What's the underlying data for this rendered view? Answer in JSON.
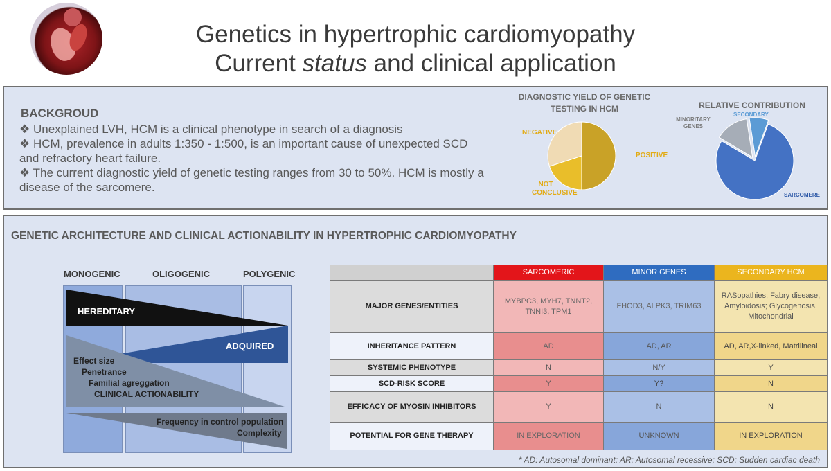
{
  "header": {
    "title_line1": "Genetics in hypertrophic cardiomyopathy",
    "title_line2_pre": "Current ",
    "title_line2_italic": "status",
    "title_line2_post": " and clinical application"
  },
  "background": {
    "heading": "BACKGROUD",
    "bullets": [
      "❖ Unexplained LVH, HCM is a clinical phenotype in search of a diagnosis",
      "❖ HCM, prevalence in adults 1:350 - 1:500, is an important cause of unexpected SCD and refractory heart failure.",
      "❖ The current diagnostic yield of genetic testing ranges from 30 to 50%. HCM is mostly a disease of the sarcomere."
    ]
  },
  "chart_data": [
    {
      "type": "pie",
      "title": "DIAGNOSTIC YIELD OF GENETIC TESTING IN HCM",
      "labels": [
        "POSITIVE",
        "NOT CONCLUSIVE",
        "NEGATIVE"
      ],
      "values": [
        50,
        20,
        30
      ],
      "colors": [
        "#c9a227",
        "#e9be2a",
        "#f0dbb4"
      ]
    },
    {
      "type": "pie",
      "title": "RELATIVE CONTRIBUTION",
      "labels": [
        "SARCOMERE",
        "MINORITARY GENES",
        "SECONDARY"
      ],
      "values": [
        78,
        14,
        8
      ],
      "colors": [
        "#4472c4",
        "#a6adb7",
        "#5b9bd5"
      ]
    }
  ],
  "pie_labels": {
    "positive": "POSITIVE",
    "not_conclusive_1": "NOT",
    "not_conclusive_2": "CONCLUSIVE",
    "negative": "NEGATIVE",
    "minoritary_1": "MINORITARY",
    "minoritary_2": "GENES",
    "secondary": "SECONDARY",
    "sarcomere": "SARCOMERE"
  },
  "architecture": {
    "title": "GENETIC ARCHITECTURE AND CLINICAL ACTIONABILITY IN HYPERTROPHIC CARDIOMYOPATHY",
    "columns": [
      "MONOGENIC",
      "OLIGOGENIC",
      "POLYGENIC"
    ],
    "hereditary": "HEREDITARY",
    "adquired": "ADQUIRED",
    "effect_lines": [
      "Effect size",
      "Penetrance",
      "Familial agreggation",
      "CLINICAL ACTIONABILITY"
    ],
    "frequency_lines": [
      "Frequency in control population",
      "Complexity"
    ]
  },
  "table": {
    "headers": [
      "SARCOMERIC",
      "MINOR GENES",
      "SECONDARY HCM"
    ],
    "header_colors": [
      "#e3151a",
      "#2f6cc0",
      "#ebb51e"
    ],
    "rows": [
      {
        "label": "MAJOR GENES/ENTITIES",
        "cells": [
          "MYBPC3, MYH7, TNNT2, TNNI3, TPM1",
          "FHOD3, ALPK3, TRIM63",
          "RASopathies; Fabry disease, Amyloidosis; Glycogenosis, Mitochondrial"
        ]
      },
      {
        "label": "INHERITANCE PATTERN",
        "cells": [
          "AD",
          "AD, AR",
          "AD, AR,X-linked, Matrilineal"
        ]
      },
      {
        "label": "SYSTEMIC PHENOTYPE",
        "cells": [
          "N",
          "N/Y",
          "Y"
        ]
      },
      {
        "label": "SCD-RISK SCORE",
        "cells": [
          "Y",
          "Y?",
          "N"
        ]
      },
      {
        "label": "EFFICACY OF MYOSIN INHIBITORS",
        "cells": [
          "Y",
          "N",
          "N"
        ]
      },
      {
        "label": "POTENTIAL FOR GENE THERAPY",
        "cells": [
          "IN EXPLORATION",
          "UNKNOWN",
          "IN EXPLORATION"
        ]
      }
    ],
    "footnote": "* AD: Autosomal dominant; AR: Autosomal recessive; SCD: Sudden cardiac death"
  }
}
